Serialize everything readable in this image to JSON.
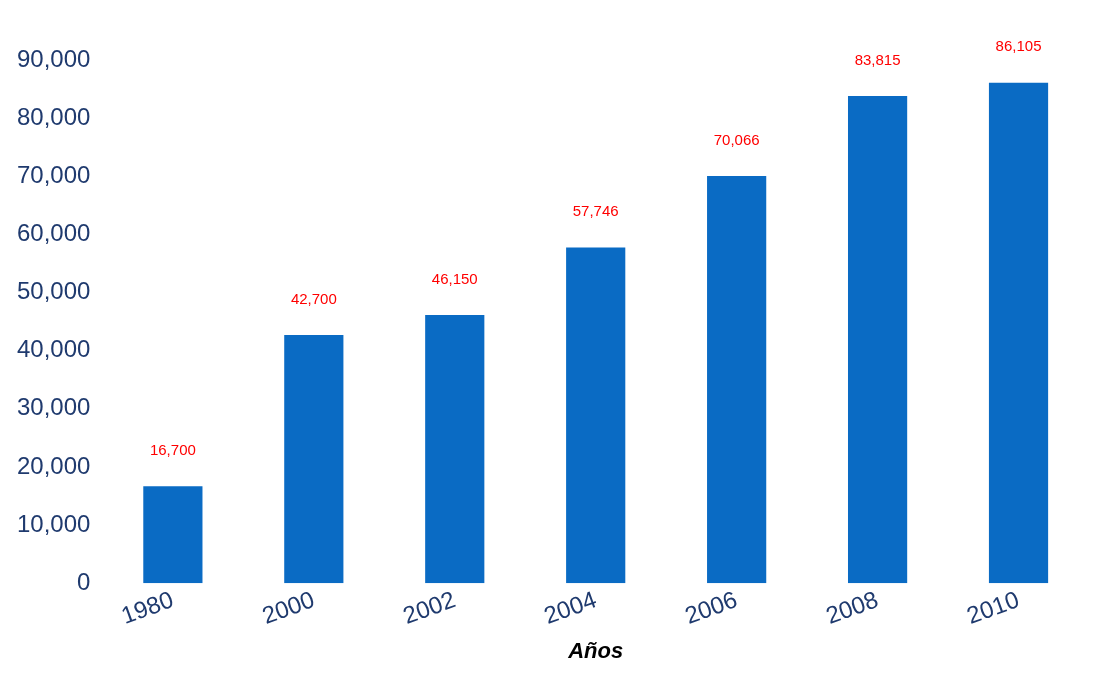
{
  "chart_data": {
    "type": "bar",
    "xlabel": "Años",
    "categories": [
      "1980",
      "2000",
      "2002",
      "2004",
      "2006",
      "2008",
      "2010"
    ],
    "values": [
      16700,
      42700,
      46150,
      57746,
      70066,
      83815,
      86105
    ],
    "value_labels": [
      "16,700",
      "42,700",
      "46,150",
      "57,746",
      "70,066",
      "83,815",
      "86,105"
    ],
    "color": "#0a6bc4",
    "ylim": [
      0,
      90000
    ],
    "yticks": [
      {
        "value": 0,
        "label": "0"
      },
      {
        "value": 10000,
        "label": "10,000"
      },
      {
        "value": 20000,
        "label": "20,000"
      },
      {
        "value": 30000,
        "label": "30,000"
      },
      {
        "value": 40000,
        "label": "40,000"
      },
      {
        "value": 50000,
        "label": "50,000"
      },
      {
        "value": 60000,
        "label": "60,000"
      },
      {
        "value": 70000,
        "label": "70,000"
      },
      {
        "value": 80000,
        "label": "80,000"
      },
      {
        "value": 90000,
        "label": "90,000"
      }
    ],
    "grid": false,
    "legend": false
  }
}
